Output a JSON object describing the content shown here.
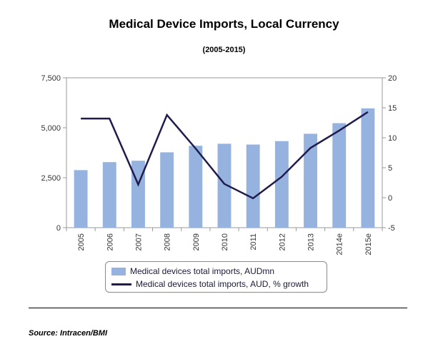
{
  "chart_data": {
    "type": "bar",
    "title": "Medical Device Imports, Local Currency",
    "subtitle": "(2005-2015)",
    "categories": [
      "2005",
      "2006",
      "2007",
      "2008",
      "2009",
      "2010",
      "2011",
      "2012",
      "2013",
      "2014e",
      "2015e"
    ],
    "series": [
      {
        "name": "Medical devices total imports, AUDmn",
        "type": "bar",
        "axis": "left",
        "color": "#95b3de",
        "values": [
          2880,
          3280,
          3350,
          3770,
          4100,
          4200,
          4160,
          4330,
          4700,
          5230,
          5970
        ]
      },
      {
        "name": "Medical devices total imports, AUD, % growth",
        "type": "line",
        "axis": "right",
        "color": "#1f1b4d",
        "values": [
          13.2,
          13.2,
          2.2,
          13.8,
          8.2,
          2.3,
          -0.1,
          3.5,
          8.3,
          11.2,
          14.3
        ]
      }
    ],
    "left_axis": {
      "ylim": [
        0,
        7500
      ],
      "ticks": [
        0,
        2500,
        5000,
        7500
      ],
      "tick_labels": [
        "0",
        "2,500",
        "5,000",
        "7,500"
      ]
    },
    "right_axis": {
      "ylim": [
        -5,
        20
      ],
      "ticks": [
        -5,
        0,
        5,
        10,
        15,
        20
      ],
      "tick_labels": [
        "-5",
        "0",
        "5",
        "10",
        "15",
        "20"
      ]
    },
    "grid": false,
    "legend_position": "bottom"
  },
  "source": "Source: Intracen/BMI"
}
